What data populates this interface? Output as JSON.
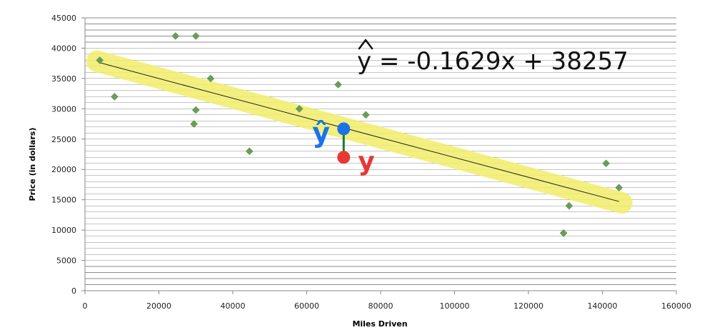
{
  "chart_data": {
    "type": "scatter",
    "title": "",
    "xlabel": "Miles Driven",
    "ylabel": "Price (in dollars)",
    "xlim": [
      0,
      160000
    ],
    "ylim": [
      0,
      45000
    ],
    "x_ticks": [
      0,
      20000,
      40000,
      60000,
      80000,
      100000,
      120000,
      140000,
      160000
    ],
    "y_ticks": [
      0,
      5000,
      10000,
      15000,
      20000,
      25000,
      30000,
      35000,
      40000,
      45000
    ],
    "x_tick_labels": [
      "0",
      "20000",
      "40000",
      "60000",
      "80000",
      "100000",
      "120000",
      "140000",
      "160000"
    ],
    "y_tick_labels": [
      "0",
      "5000",
      "10000",
      "15000",
      "20000",
      "25000",
      "30000",
      "35000",
      "40000",
      "45000"
    ],
    "grid": true,
    "points": [
      {
        "x": 4000,
        "y": 38000
      },
      {
        "x": 8000,
        "y": 32000
      },
      {
        "x": 24500,
        "y": 42000
      },
      {
        "x": 30000,
        "y": 42000
      },
      {
        "x": 29500,
        "y": 27500
      },
      {
        "x": 30000,
        "y": 29800
      },
      {
        "x": 34000,
        "y": 35000
      },
      {
        "x": 44500,
        "y": 23000
      },
      {
        "x": 58000,
        "y": 30000
      },
      {
        "x": 68500,
        "y": 34000
      },
      {
        "x": 76000,
        "y": 29000
      },
      {
        "x": 129500,
        "y": 9500
      },
      {
        "x": 131000,
        "y": 14000
      },
      {
        "x": 141000,
        "y": 21000
      },
      {
        "x": 144500,
        "y": 17000
      }
    ],
    "trendline": {
      "slope": -0.1629,
      "intercept": 38257,
      "x_range": [
        4000,
        144500
      ],
      "equation_text": "y = -0.1629x + 38257"
    },
    "annotations": {
      "predicted_point": {
        "x": 70000,
        "y": 26700,
        "label": "ŷ"
      },
      "actual_point": {
        "x": 70000,
        "y": 22000,
        "label": "y"
      }
    },
    "colors": {
      "marker": "#6a9e58",
      "trendline": "#222222",
      "highlight": "#f2ee6a",
      "predicted": "#1a73e8",
      "actual": "#e53935",
      "residual": "#1b7a2f",
      "grid": "#8c8c8c"
    }
  }
}
